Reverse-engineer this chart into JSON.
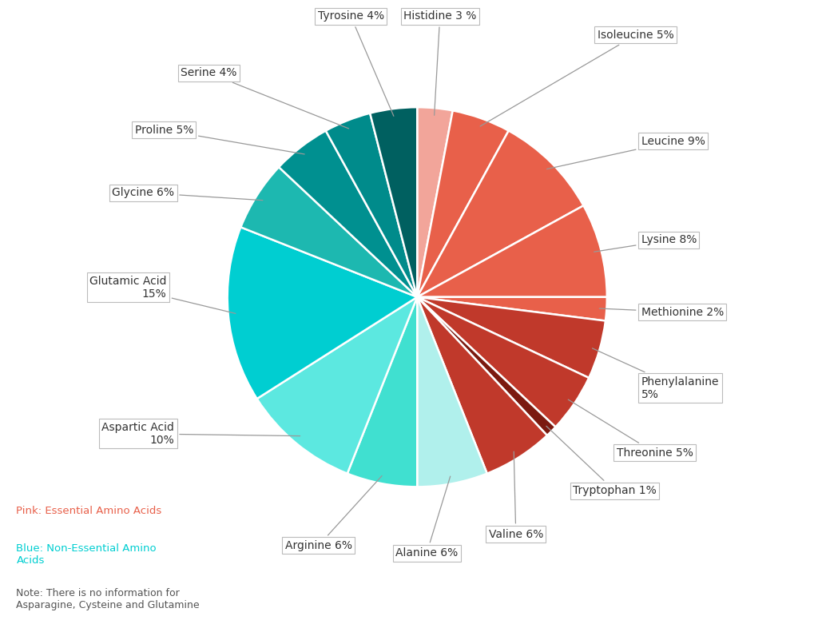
{
  "labels": [
    "Histidine",
    "Isoleucine",
    "Leucine",
    "Lysine",
    "Methionine",
    "Phenylalanine",
    "Threonine",
    "Tryptophan",
    "Valine",
    "Alanine",
    "Arginine",
    "Aspartic Acid",
    "Glutamic Acid",
    "Glycine",
    "Proline",
    "Serine",
    "Tyrosine"
  ],
  "values": [
    3,
    5,
    9,
    8,
    2,
    5,
    5,
    1,
    6,
    6,
    6,
    10,
    15,
    6,
    5,
    4,
    4
  ],
  "colors": [
    "#F2A59A",
    "#E8604A",
    "#E8604A",
    "#E8604A",
    "#E8604A",
    "#C0392B",
    "#C0392B",
    "#7B1A10",
    "#C0392B",
    "#B0F0EC",
    "#40E0D0",
    "#5CE8E0",
    "#00CED1",
    "#1DB8B0",
    "#009090",
    "#008B8B",
    "#006060"
  ],
  "label_texts": [
    "Histidine 3 %",
    "Isoleucine 5%",
    "Leucine 9%",
    "Lysine 8%",
    "Methionine 2%",
    "Phenylalanine\n5%",
    "Threonine 5%",
    "Tryptophan 1%",
    "Valine 6%",
    "Alanine 6%",
    "Arginine 6%",
    "Aspartic Acid\n10%",
    "Glutamic Acid\n15%",
    "Glycine 6%",
    "Proline 5%",
    "Serine 4%",
    "Tyrosine 4%"
  ],
  "note_pink": "Pink: Essential Amino Acids",
  "note_blue": "Blue: Non-Essential Amino\nAcids",
  "note_gray": "Note: There is no information for\nAsparagine, Cysteine and Glutamine",
  "pink_color": "#E8604A",
  "blue_color": "#00CED1",
  "gray_color": "#555555",
  "background_color": "#ffffff",
  "wedge_edge_color": "#ffffff",
  "wedge_linewidth": 1.8
}
